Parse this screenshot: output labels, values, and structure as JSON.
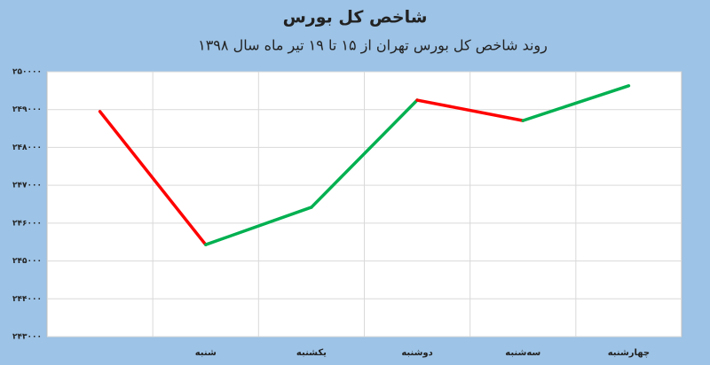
{
  "chart_data": {
    "type": "line",
    "title": "شاخص کل بورس",
    "subtitle": "روند شاخص کل بورس تهران از ۱۵ تا ۱۹ تیر ماه سال ۱۳۹۸",
    "categories": [
      null,
      "شنبه",
      "یکشنبه",
      "دوشنبه",
      "سه‌شنبه",
      "چهارشنبه"
    ],
    "values": [
      248950,
      245430,
      246420,
      249250,
      248710,
      249630
    ],
    "increase_color": "#00b050",
    "decrease_color": "#ff0000",
    "ylim": [
      243000,
      250000
    ],
    "yticks": [
      {
        "value": 243000,
        "label": "۲۴۳۰۰۰"
      },
      {
        "value": 244000,
        "label": "۲۴۴۰۰۰"
      },
      {
        "value": 245000,
        "label": "۲۴۵۰۰۰"
      },
      {
        "value": 246000,
        "label": "۲۴۶۰۰۰"
      },
      {
        "value": 247000,
        "label": "۲۴۷۰۰۰"
      },
      {
        "value": 248000,
        "label": "۲۴۸۰۰۰"
      },
      {
        "value": 249000,
        "label": "۲۴۹۰۰۰"
      },
      {
        "value": 250000,
        "label": "۲۵۰۰۰۰"
      }
    ],
    "grid": true
  }
}
